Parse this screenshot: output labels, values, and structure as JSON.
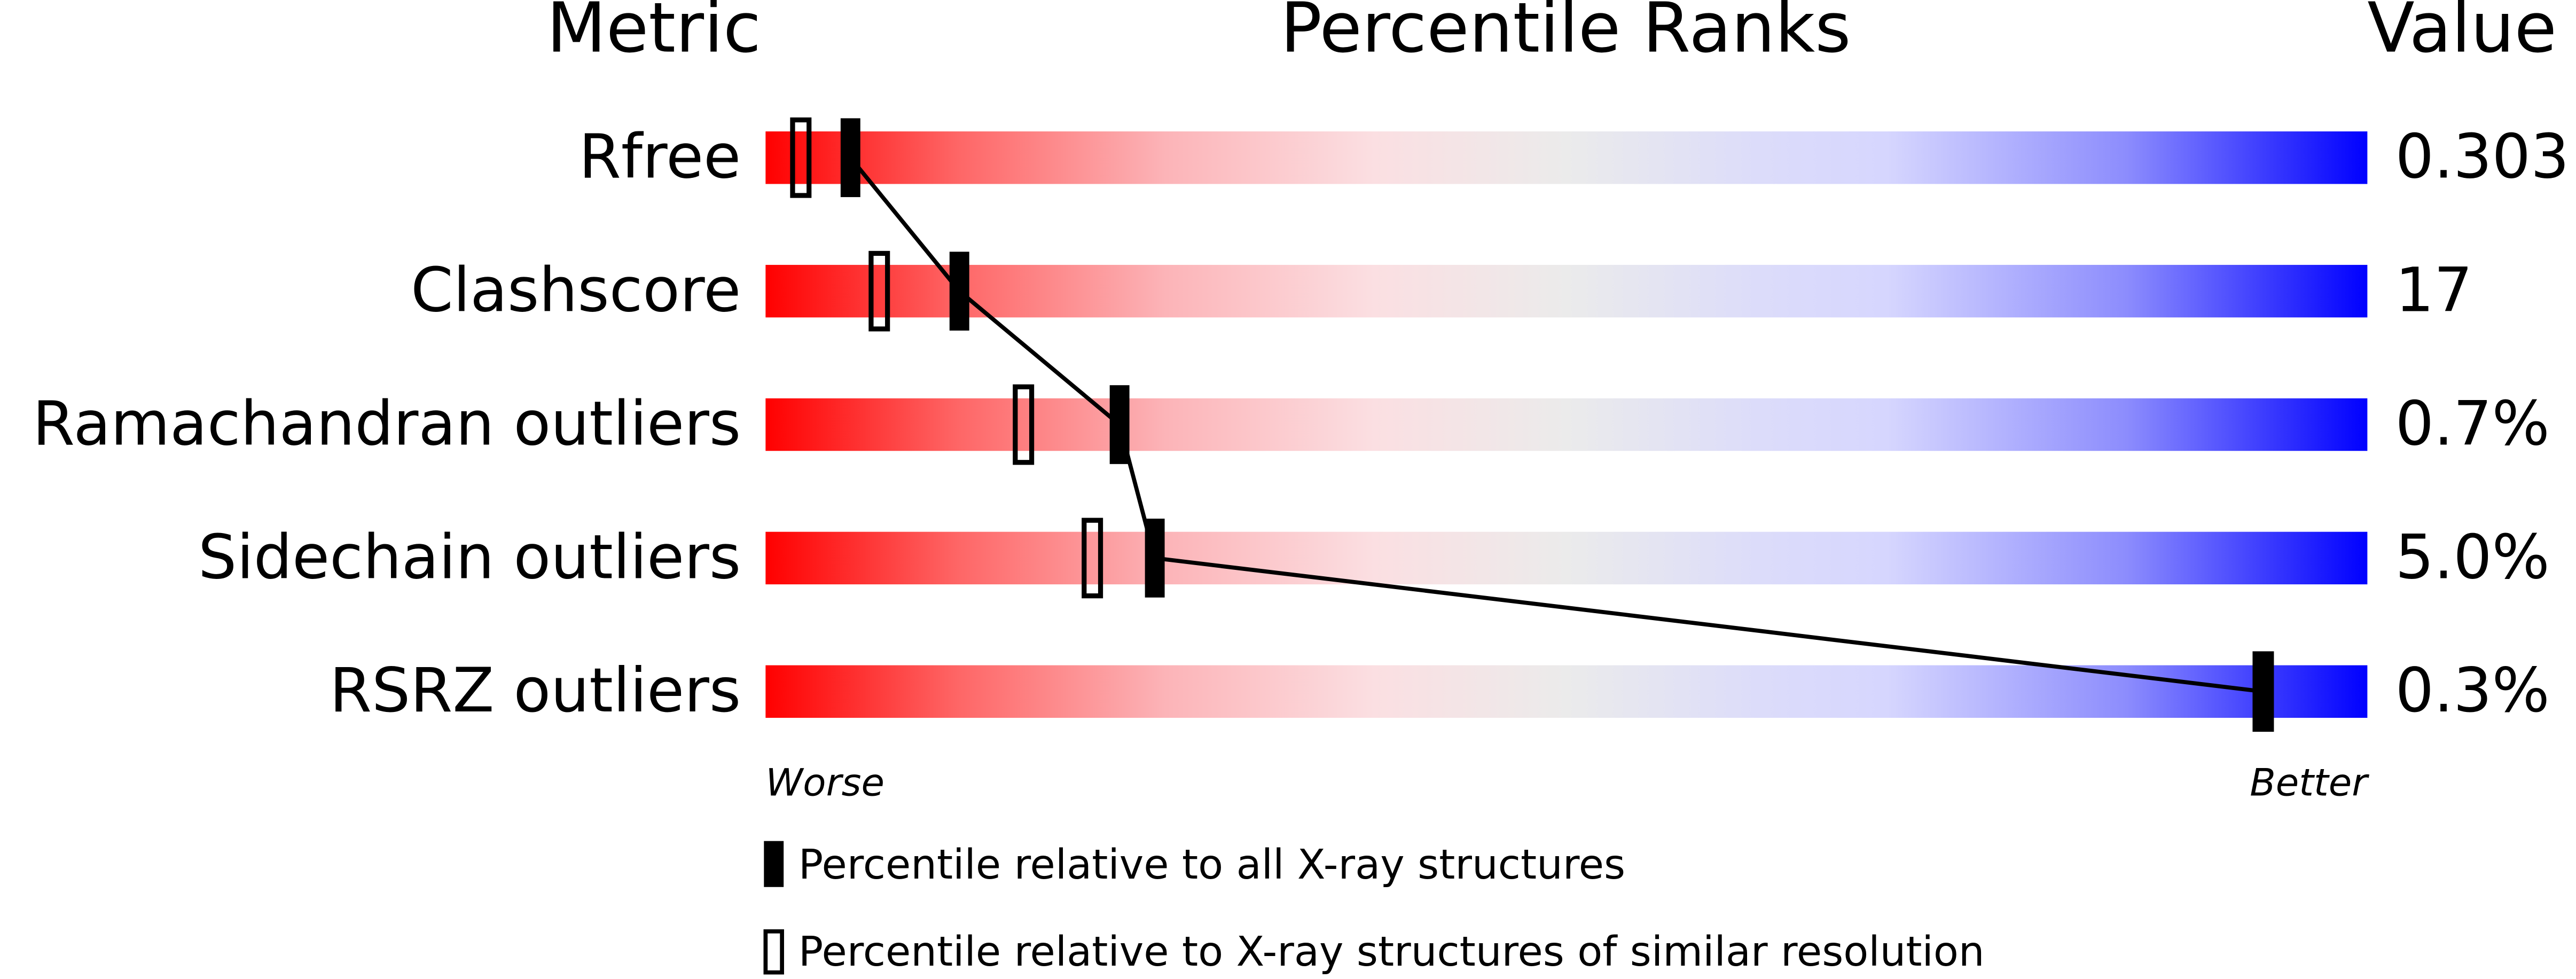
{
  "chart_data": {
    "type": "percentile",
    "headers": [
      "Metric",
      "Percentile Ranks",
      "Value"
    ],
    "categories": [
      "Rfree",
      "Clashscore",
      "Ramachandran outliers",
      "Sidechain outliers",
      "RSRZ outliers"
    ],
    "metric_values": [
      "0.303",
      "17",
      "0.7%",
      "5.0%",
      "0.3%"
    ],
    "xlim": [
      0,
      100
    ],
    "axis_labels": [
      "Worse",
      "Better"
    ],
    "series": [
      {
        "name": "Percentile relative to all X-ray structures",
        "color": "#000000",
        "style": "filled",
        "values": [
          5.3,
          12.1,
          22.1,
          24.3,
          93.5
        ]
      },
      {
        "name": "Percentile relative to X-ray structures of similar resolution",
        "color": "#000000",
        "style": "open",
        "values": [
          2.2,
          7.1,
          16.1,
          20.4,
          93.5
        ]
      }
    ]
  }
}
